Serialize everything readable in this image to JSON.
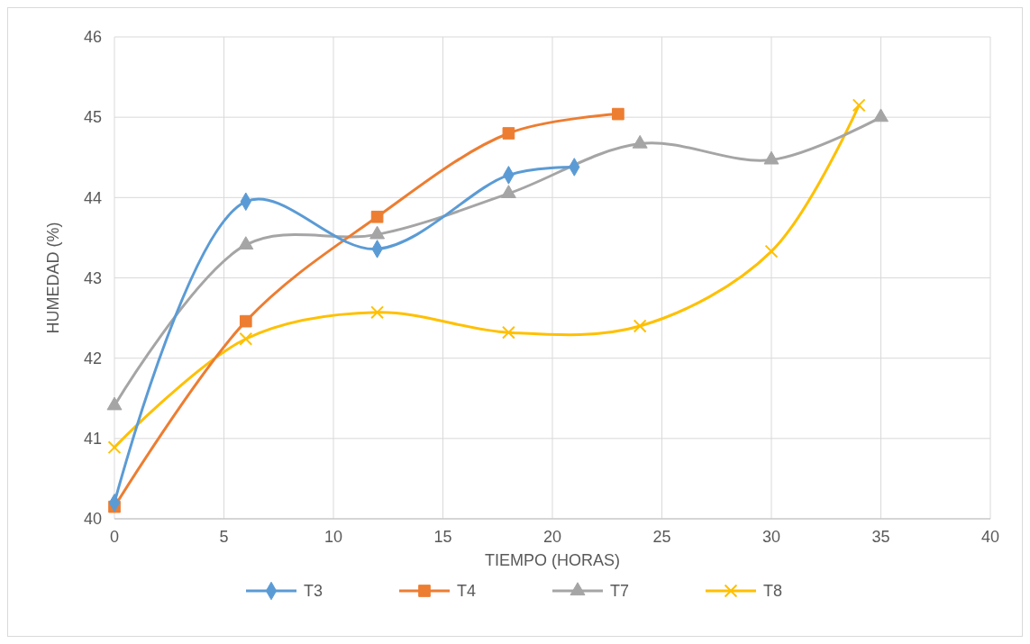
{
  "chart_data": {
    "type": "line",
    "xlabel": "TIEMPO (HORAS)",
    "ylabel": "HUMEDAD (%)",
    "xlim": [
      0,
      40
    ],
    "xticks": [
      0,
      5,
      10,
      15,
      20,
      25,
      30,
      35,
      40
    ],
    "ylim": [
      40,
      46
    ],
    "yticks": [
      40,
      41,
      42,
      43,
      44,
      45,
      46
    ],
    "grid": true,
    "legend": "bottom",
    "series": [
      {
        "name": "T3",
        "color": "#5b9bd5",
        "marker": "diamond",
        "x": [
          0,
          6,
          12,
          18,
          21
        ],
        "values": [
          40.2,
          43.95,
          43.36,
          44.28,
          44.38
        ]
      },
      {
        "name": "T4",
        "color": "#ed7d31",
        "marker": "square",
        "x": [
          0,
          6,
          12,
          18,
          23
        ],
        "values": [
          40.15,
          42.46,
          43.76,
          44.8,
          45.04
        ]
      },
      {
        "name": "T7",
        "color": "#a5a5a5",
        "marker": "triangle",
        "x": [
          0,
          6,
          12,
          18,
          24,
          30,
          35
        ],
        "values": [
          41.41,
          43.41,
          43.54,
          44.05,
          44.67,
          44.47,
          45.0
        ]
      },
      {
        "name": "T8",
        "color": "#ffc000",
        "marker": "cross",
        "x": [
          0,
          6,
          12,
          18,
          24,
          30,
          34
        ],
        "values": [
          40.89,
          42.24,
          42.57,
          42.32,
          42.4,
          43.33,
          45.15
        ]
      }
    ]
  }
}
